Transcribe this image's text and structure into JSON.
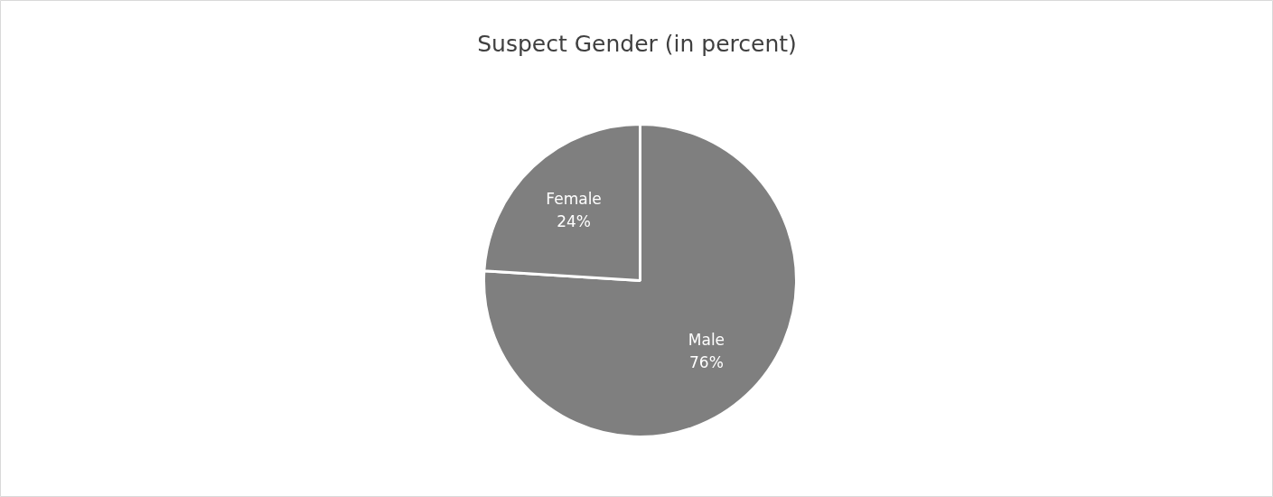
{
  "chart_data": {
    "type": "pie",
    "title": "Suspect Gender (in percent)",
    "categories": [
      "Male",
      "Female"
    ],
    "values": [
      76,
      24
    ],
    "colors": [
      "#7f7f7f",
      "#7f7f7f"
    ],
    "value_labels": [
      "76%",
      "24%"
    ]
  }
}
